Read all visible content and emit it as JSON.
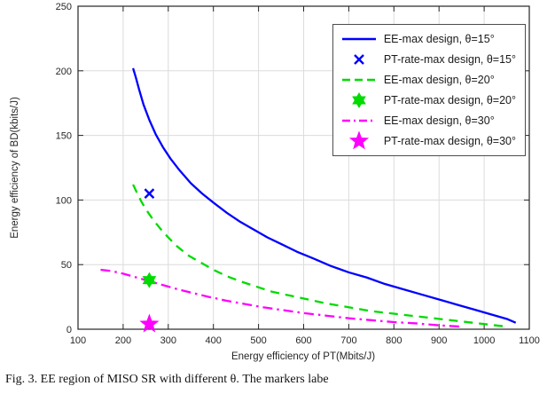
{
  "figure": {
    "caption": "Fig. 3.    EE region of MISO SR with different θ. The markers labe"
  },
  "chart_data": {
    "type": "line",
    "title": "",
    "xlabel": "Energy efficiency of PT(Mbits/J)",
    "ylabel": "Energy efficiency of BD(kbits/J)",
    "xlim": [
      100,
      1100
    ],
    "ylim": [
      0,
      250
    ],
    "xticks": [
      100,
      200,
      300,
      400,
      500,
      600,
      700,
      800,
      900,
      1000,
      1100
    ],
    "yticks": [
      0,
      50,
      100,
      150,
      200,
      250
    ],
    "grid": true,
    "legend_position": "upper right",
    "colors": {
      "blue": "#0000FF",
      "green": "#00DB00",
      "magenta": "#FF00FF",
      "grid": "#dcdcdc",
      "axis": "#262626"
    },
    "series": [
      {
        "name": "EE-max design, θ=15°",
        "type": "line",
        "dash": "solid",
        "color": "#0000FF",
        "x": [
          222,
          228,
          235,
          245,
          258,
          272,
          288,
          305,
          325,
          350,
          375,
          400,
          430,
          460,
          490,
          520,
          550,
          585,
          620,
          660,
          700,
          740,
          780,
          820,
          860,
          900,
          940,
          980,
          1020,
          1050,
          1070
        ],
        "y": [
          202,
          195,
          186,
          174,
          162,
          151,
          141,
          132,
          123,
          113,
          105,
          98,
          90,
          83,
          77,
          71,
          66,
          60,
          55,
          49,
          44,
          40,
          35,
          31,
          27,
          23,
          19,
          15,
          11,
          8,
          5
        ]
      },
      {
        "name": "PT-rate-max design, θ=15°",
        "type": "marker",
        "marker": "x",
        "color": "#0000FF",
        "x": [
          258
        ],
        "y": [
          105
        ]
      },
      {
        "name": "EE-max design, θ=20°",
        "type": "line",
        "dash": "dashed",
        "color": "#00DB00",
        "x": [
          222,
          230,
          240,
          252,
          266,
          282,
          300,
          320,
          345,
          370,
          400,
          430,
          460,
          495,
          530,
          570,
          610,
          650,
          700,
          750,
          800,
          850,
          900,
          950,
          1000,
          1050
        ],
        "y": [
          112,
          106,
          99,
          92,
          85,
          78,
          71,
          64,
          57,
          52,
          46,
          41,
          37,
          33,
          29,
          26,
          23,
          20,
          17,
          14,
          12,
          10,
          8,
          6,
          4,
          2
        ]
      },
      {
        "name": "PT-rate-max design, θ=20°",
        "type": "marker",
        "marker": "hexagram",
        "color": "#00DB00",
        "x": [
          258
        ],
        "y": [
          38
        ]
      },
      {
        "name": "EE-max design, θ=30°",
        "type": "line",
        "dash": "dashdot",
        "color": "#FF00FF",
        "x": [
          150,
          175,
          200,
          230,
          260,
          290,
          320,
          355,
          390,
          430,
          470,
          510,
          550,
          600,
          650,
          700,
          750,
          800,
          850,
          900,
          950
        ],
        "y": [
          46,
          45,
          43,
          40,
          37,
          34,
          31,
          28,
          25,
          22,
          19.5,
          17,
          15,
          12.5,
          10.5,
          8.5,
          7,
          5.5,
          4.5,
          3,
          2
        ]
      },
      {
        "name": "PT-rate-max design, θ=30°",
        "type": "marker",
        "marker": "pentagram",
        "color": "#FF00FF",
        "x": [
          258
        ],
        "y": [
          4
        ]
      }
    ]
  }
}
